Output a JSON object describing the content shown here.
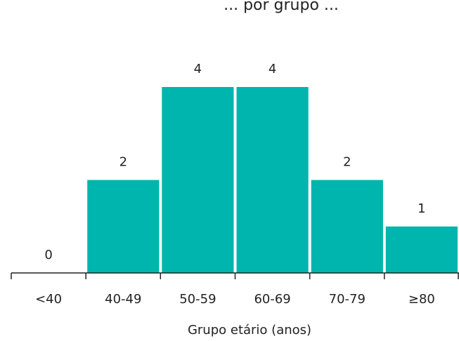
{
  "chart_data": {
    "type": "bar",
    "title": "... por grupo ...",
    "xlabel": "Grupo etário (anos)",
    "ylabel": "",
    "categories": [
      "<40",
      "40-49",
      "50-59",
      "60-69",
      "70-79",
      "≥80"
    ],
    "values": [
      0,
      2,
      4,
      4,
      2,
      1
    ],
    "ylim": [
      0,
      4
    ],
    "grid": false,
    "legend": "none",
    "bar_color": "#00b5ad"
  }
}
